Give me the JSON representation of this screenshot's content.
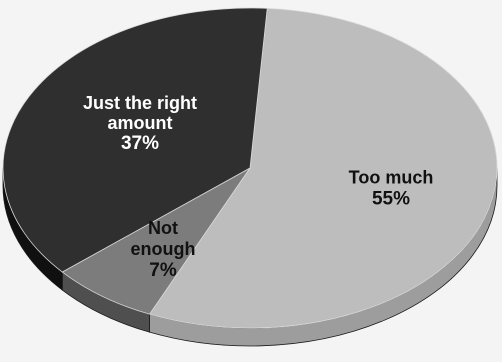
{
  "chart_data": {
    "type": "pie",
    "title": "",
    "slices": [
      {
        "name": "Too much",
        "value": 55,
        "label_lines": [
          "Too much"
        ],
        "value_label": "55%",
        "color": "#bdbdbd",
        "side_color": "#9d9d9d",
        "label_color": "#111111"
      },
      {
        "name": "Not enough",
        "value": 7,
        "label_lines": [
          "Not",
          "enough"
        ],
        "value_label": "7%",
        "color": "#7c7c7c",
        "side_color": "#4f4f4f",
        "label_color": "#111111"
      },
      {
        "name": "Just the right amount",
        "value": 37,
        "label_lines": [
          "Just the right",
          "amount"
        ],
        "value_label": "37%",
        "color": "#2f2f2f",
        "side_color": "#101010",
        "label_color": "#ffffff"
      }
    ],
    "start_angle_deg": -86,
    "style": "3d-tilted"
  }
}
